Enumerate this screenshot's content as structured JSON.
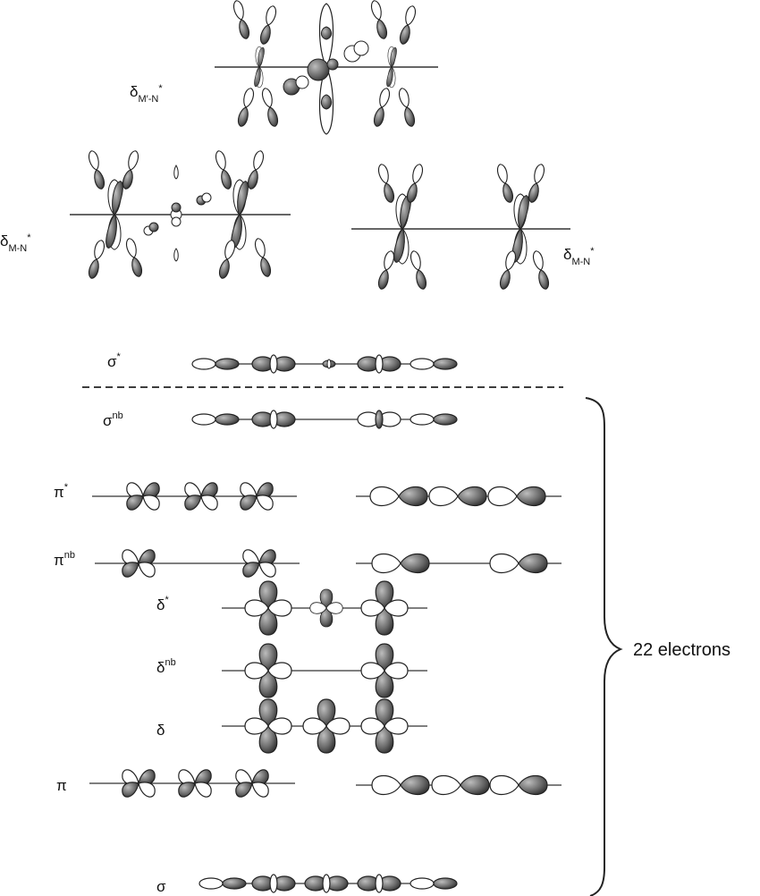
{
  "labels": {
    "delta_mprime_n_star": {
      "base": "δ",
      "sub": "M′-N",
      "sup": "*"
    },
    "delta_mn_star_left": {
      "base": "δ",
      "sub": "M-N",
      "sup": "*"
    },
    "delta_mn_star_right": {
      "base": "δ",
      "sub": "M-N",
      "sup": "*"
    },
    "sigma_star": {
      "base": "σ",
      "sup": "*"
    },
    "sigma_nb": {
      "base": "σ",
      "sup": "nb"
    },
    "pi_star": {
      "base": "π",
      "sup": "*"
    },
    "pi_nb": {
      "base": "π",
      "sup": "nb"
    },
    "delta_star": {
      "base": "δ",
      "sup": "*"
    },
    "delta_nb": {
      "base": "δ",
      "sup": "nb"
    },
    "delta": {
      "base": "δ"
    },
    "pi": {
      "base": "π"
    },
    "sigma": {
      "base": "σ"
    }
  },
  "brace_label": "22 electrons",
  "colors": {
    "lobe_fill_dark": "#4a4a4a",
    "lobe_fill_light": "#ffffff",
    "line": "#444444"
  }
}
